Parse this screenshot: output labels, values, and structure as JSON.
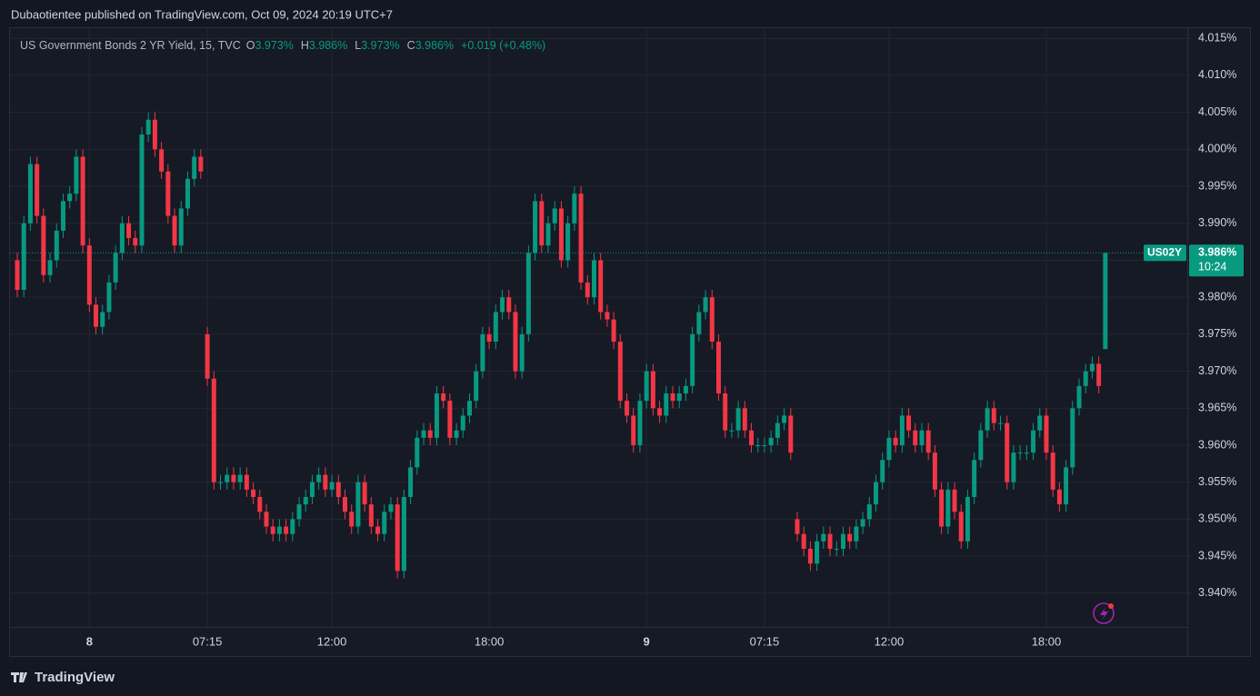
{
  "publisher_line": "Dubaotientee published on TradingView.com, Oct 09, 2024 20:19 UTC+7",
  "brand": "TradingView",
  "chart_data": {
    "type": "candlestick",
    "title": "US Government Bonds 2 YR Yield, 15, TVC",
    "ohlc_legend": [
      {
        "key": "O",
        "value": "3.973%"
      },
      {
        "key": "H",
        "value": "3.986%"
      },
      {
        "key": "L",
        "value": "3.973%"
      },
      {
        "key": "C",
        "value": "3.986%"
      }
    ],
    "change": "+0.019 (+0.48%)",
    "symbol_tag": "US02Y",
    "last_price_label": "3.986%",
    "countdown": "10:24",
    "up_color": "#089981",
    "down_color": "#f23645",
    "grid": true,
    "ylim": [
      3.9315,
      4.0165
    ],
    "yticks": [
      {
        "value": 3.94,
        "label": "3.940%"
      },
      {
        "value": 3.945,
        "label": "3.945%"
      },
      {
        "value": 3.95,
        "label": "3.950%"
      },
      {
        "value": 3.955,
        "label": "3.955%"
      },
      {
        "value": 3.96,
        "label": "3.960%"
      },
      {
        "value": 3.965,
        "label": "3.965%"
      },
      {
        "value": 3.97,
        "label": "3.970%"
      },
      {
        "value": 3.975,
        "label": "3.975%"
      },
      {
        "value": 3.98,
        "label": "3.980%"
      },
      {
        "value": 3.985,
        "label": "3.985%"
      },
      {
        "value": 3.99,
        "label": "3.990%"
      },
      {
        "value": 3.995,
        "label": "3.995%"
      },
      {
        "value": 4.0,
        "label": "4.000%"
      },
      {
        "value": 4.005,
        "label": "4.005%"
      },
      {
        "value": 4.01,
        "label": "4.010%"
      },
      {
        "value": 4.015,
        "label": "4.015%"
      }
    ],
    "xticks": [
      {
        "value": 11,
        "label": "8"
      },
      {
        "value": 29,
        "label": "07:15"
      },
      {
        "value": 48,
        "label": "12:00"
      },
      {
        "value": 72,
        "label": "18:00"
      },
      {
        "value": 96,
        "label": "9"
      },
      {
        "value": 114,
        "label": "07:15"
      },
      {
        "value": 133,
        "label": "12:00"
      },
      {
        "value": 157,
        "label": "18:00"
      }
    ],
    "open": [
      3.985,
      3.981,
      3.99,
      3.998,
      3.991,
      3.983,
      3.985,
      3.989,
      3.993,
      3.994,
      3.999,
      3.987,
      3.979,
      3.976,
      3.978,
      3.982,
      3.986,
      3.99,
      3.988,
      3.987,
      4.002,
      4.004,
      4.0,
      3.997,
      3.991,
      3.987,
      3.992,
      3.996,
      3.999,
      3.975,
      3.969,
      3.955,
      3.955,
      3.956,
      3.955,
      3.956,
      3.954,
      3.953,
      3.951,
      3.949,
      3.948,
      3.949,
      3.948,
      3.95,
      3.952,
      3.953,
      3.955,
      3.956,
      3.954,
      3.955,
      3.953,
      3.951,
      3.949,
      3.955,
      3.952,
      3.949,
      3.948,
      3.951,
      3.952,
      3.943,
      3.953,
      3.957,
      3.961,
      3.962,
      3.961,
      3.967,
      3.966,
      3.961,
      3.962,
      3.964,
      3.966,
      3.97,
      3.975,
      3.974,
      3.978,
      3.98,
      3.978,
      3.97,
      3.975,
      3.986,
      3.993,
      3.987,
      3.99,
      3.992,
      3.985,
      3.99,
      3.994,
      3.982,
      3.98,
      3.985,
      3.978,
      3.977,
      3.974,
      3.966,
      3.964,
      3.96,
      3.966,
      3.97,
      3.965,
      3.964,
      3.967,
      3.966,
      3.967,
      3.968,
      3.975,
      3.978,
      3.98,
      3.974,
      3.967,
      3.962,
      3.962,
      3.965,
      3.962,
      3.96,
      3.96,
      3.96,
      3.961,
      3.963,
      3.964,
      3.95,
      3.948,
      3.946,
      3.944,
      3.947,
      3.948,
      3.946,
      3.946,
      3.948,
      3.947,
      3.949,
      3.95,
      3.952,
      3.955,
      3.958,
      3.961,
      3.96,
      3.964,
      3.962,
      3.96,
      3.962,
      3.959,
      3.954,
      3.949,
      3.954,
      3.951,
      3.947,
      3.953,
      3.958,
      3.962,
      3.965,
      3.963,
      3.963,
      3.955,
      3.959,
      3.959,
      3.959,
      3.962,
      3.964,
      3.959,
      3.954,
      3.952,
      3.957,
      3.965,
      3.968,
      3.97,
      3.971,
      3.973
    ],
    "high": [
      3.986,
      3.991,
      3.999,
      3.999,
      3.992,
      3.986,
      3.99,
      3.994,
      3.995,
      4.0,
      4.0,
      3.988,
      3.98,
      3.979,
      3.983,
      3.987,
      3.991,
      3.991,
      3.989,
      4.003,
      4.005,
      4.005,
      4.001,
      3.998,
      3.992,
      3.993,
      3.997,
      4.0,
      4.0,
      3.976,
      3.97,
      3.956,
      3.957,
      3.957,
      3.957,
      3.957,
      3.955,
      3.954,
      3.952,
      3.95,
      3.95,
      3.95,
      3.951,
      3.953,
      3.954,
      3.956,
      3.957,
      3.957,
      3.956,
      3.956,
      3.954,
      3.952,
      3.956,
      3.956,
      3.953,
      3.95,
      3.952,
      3.953,
      3.953,
      3.954,
      3.958,
      3.962,
      3.963,
      3.963,
      3.968,
      3.968,
      3.967,
      3.963,
      3.965,
      3.967,
      3.971,
      3.976,
      3.976,
      3.979,
      3.981,
      3.981,
      3.979,
      3.976,
      3.987,
      3.994,
      3.994,
      3.991,
      3.993,
      3.993,
      3.991,
      3.995,
      3.995,
      3.983,
      3.986,
      3.986,
      3.979,
      3.978,
      3.975,
      3.967,
      3.965,
      3.967,
      3.971,
      3.971,
      3.966,
      3.968,
      3.968,
      3.968,
      3.969,
      3.976,
      3.979,
      3.981,
      3.981,
      3.975,
      3.968,
      3.963,
      3.966,
      3.966,
      3.963,
      3.961,
      3.961,
      3.962,
      3.964,
      3.965,
      3.965,
      3.951,
      3.949,
      3.947,
      3.948,
      3.949,
      3.949,
      3.947,
      3.949,
      3.949,
      3.95,
      3.951,
      3.953,
      3.956,
      3.959,
      3.962,
      3.962,
      3.965,
      3.965,
      3.963,
      3.963,
      3.963,
      3.96,
      3.955,
      3.955,
      3.955,
      3.952,
      3.954,
      3.959,
      3.963,
      3.966,
      3.966,
      3.964,
      3.964,
      3.96,
      3.96,
      3.96,
      3.963,
      3.965,
      3.965,
      3.96,
      3.955,
      3.958,
      3.966,
      3.969,
      3.971,
      3.972,
      3.972,
      3.986
    ],
    "low": [
      3.98,
      3.98,
      3.989,
      3.99,
      3.982,
      3.982,
      3.984,
      3.988,
      3.992,
      3.993,
      3.986,
      3.978,
      3.975,
      3.975,
      3.977,
      3.981,
      3.985,
      3.987,
      3.986,
      3.986,
      4.001,
      3.999,
      3.996,
      3.99,
      3.986,
      3.986,
      3.991,
      3.995,
      3.996,
      3.968,
      3.954,
      3.954,
      3.954,
      3.954,
      3.954,
      3.953,
      3.952,
      3.95,
      3.948,
      3.947,
      3.947,
      3.947,
      3.947,
      3.949,
      3.951,
      3.952,
      3.954,
      3.953,
      3.953,
      3.952,
      3.95,
      3.948,
      3.948,
      3.951,
      3.948,
      3.947,
      3.947,
      3.95,
      3.942,
      3.942,
      3.952,
      3.956,
      3.96,
      3.96,
      3.96,
      3.965,
      3.96,
      3.96,
      3.961,
      3.963,
      3.965,
      3.969,
      3.973,
      3.973,
      3.977,
      3.977,
      3.969,
      3.969,
      3.974,
      3.985,
      3.986,
      3.986,
      3.989,
      3.984,
      3.984,
      3.989,
      3.981,
      3.979,
      3.979,
      3.977,
      3.976,
      3.973,
      3.965,
      3.963,
      3.959,
      3.959,
      3.965,
      3.964,
      3.963,
      3.963,
      3.965,
      3.965,
      3.966,
      3.967,
      3.974,
      3.977,
      3.973,
      3.966,
      3.961,
      3.961,
      3.961,
      3.961,
      3.959,
      3.959,
      3.959,
      3.959,
      3.96,
      3.962,
      3.958,
      3.947,
      3.945,
      3.943,
      3.943,
      3.946,
      3.945,
      3.945,
      3.945,
      3.946,
      3.946,
      3.948,
      3.949,
      3.951,
      3.954,
      3.957,
      3.959,
      3.959,
      3.961,
      3.959,
      3.959,
      3.958,
      3.953,
      3.948,
      3.948,
      3.95,
      3.946,
      3.946,
      3.952,
      3.957,
      3.961,
      3.962,
      3.962,
      3.954,
      3.954,
      3.958,
      3.958,
      3.958,
      3.961,
      3.958,
      3.953,
      3.951,
      3.951,
      3.956,
      3.964,
      3.967,
      3.969,
      3.967,
      3.973
    ],
    "close": [
      3.981,
      3.99,
      3.998,
      3.991,
      3.983,
      3.985,
      3.989,
      3.993,
      3.994,
      3.999,
      3.987,
      3.979,
      3.976,
      3.978,
      3.982,
      3.986,
      3.99,
      3.988,
      3.987,
      4.002,
      4.004,
      4.0,
      3.997,
      3.991,
      3.987,
      3.992,
      3.996,
      3.999,
      3.997,
      3.969,
      3.955,
      3.955,
      3.956,
      3.955,
      3.956,
      3.954,
      3.953,
      3.951,
      3.949,
      3.948,
      3.949,
      3.948,
      3.95,
      3.952,
      3.953,
      3.955,
      3.956,
      3.954,
      3.955,
      3.953,
      3.951,
      3.949,
      3.955,
      3.952,
      3.949,
      3.948,
      3.951,
      3.952,
      3.943,
      3.953,
      3.957,
      3.961,
      3.962,
      3.961,
      3.967,
      3.966,
      3.961,
      3.962,
      3.964,
      3.966,
      3.97,
      3.975,
      3.974,
      3.978,
      3.98,
      3.978,
      3.97,
      3.975,
      3.986,
      3.993,
      3.987,
      3.99,
      3.992,
      3.985,
      3.99,
      3.994,
      3.982,
      3.98,
      3.985,
      3.978,
      3.977,
      3.974,
      3.966,
      3.964,
      3.96,
      3.966,
      3.97,
      3.965,
      3.964,
      3.967,
      3.966,
      3.967,
      3.968,
      3.975,
      3.978,
      3.98,
      3.974,
      3.967,
      3.962,
      3.962,
      3.965,
      3.962,
      3.96,
      3.96,
      3.96,
      3.961,
      3.963,
      3.964,
      3.959,
      3.948,
      3.946,
      3.944,
      3.947,
      3.948,
      3.946,
      3.946,
      3.948,
      3.947,
      3.949,
      3.95,
      3.952,
      3.955,
      3.958,
      3.961,
      3.96,
      3.964,
      3.962,
      3.96,
      3.962,
      3.959,
      3.954,
      3.949,
      3.954,
      3.951,
      3.947,
      3.953,
      3.958,
      3.962,
      3.965,
      3.963,
      3.963,
      3.955,
      3.959,
      3.959,
      3.959,
      3.962,
      3.964,
      3.959,
      3.954,
      3.952,
      3.957,
      3.965,
      3.968,
      3.97,
      3.971,
      3.968,
      3.986
    ]
  }
}
